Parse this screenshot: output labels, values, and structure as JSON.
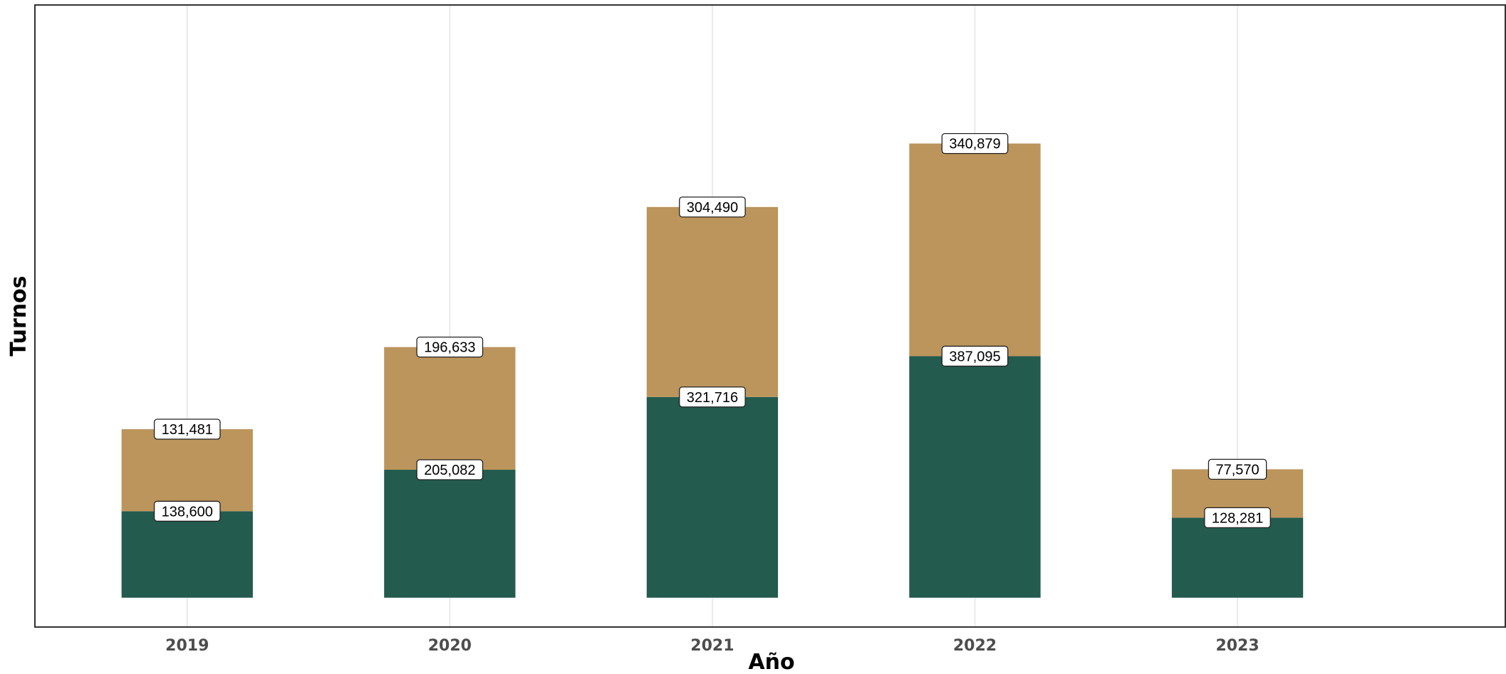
{
  "chart_data": {
    "type": "bar",
    "stacked": true,
    "title": "",
    "xlabel": "Año",
    "ylabel": "Turnos",
    "categories": [
      "2019",
      "2020",
      "2021",
      "2022",
      "2023"
    ],
    "series": [
      {
        "values": [
          138600,
          205082,
          321716,
          387095,
          128281
        ],
        "labels": [
          "138,600",
          "205,082",
          "321,716",
          "387,095",
          "128,281"
        ],
        "color": "#235b4e"
      },
      {
        "values": [
          131481,
          196633,
          304490,
          340879,
          77570
        ],
        "labels": [
          "131,481",
          "196,633",
          "304,490",
          "340,879",
          "77,570"
        ],
        "color": "#bc955c"
      }
    ],
    "ylim": [
      -47000,
      950000
    ],
    "grid": {
      "vertical": true,
      "horizontal": false,
      "color": "#e3e3e3"
    },
    "y_ticks_shown": false,
    "data_labels": true,
    "legend": "none",
    "frame_color": "#333333"
  }
}
